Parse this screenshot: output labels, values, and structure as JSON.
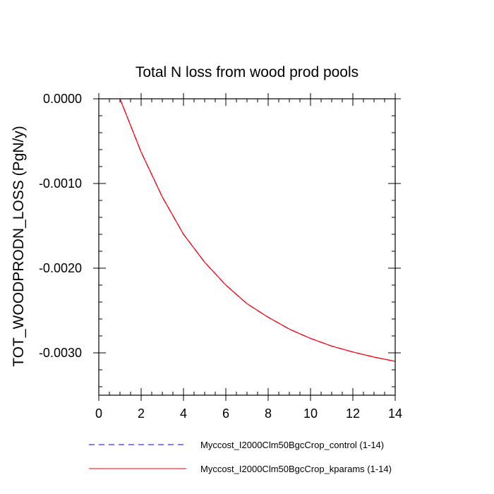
{
  "chart_data": {
    "type": "line",
    "title": "Total N loss from wood prod pools",
    "xlabel": "",
    "ylabel": "TOT_WOODPRODN_LOSS  (PgN/y)",
    "xlim": [
      0,
      14
    ],
    "ylim": [
      -0.0035,
      0.0
    ],
    "x_ticks": [
      0,
      2,
      4,
      6,
      8,
      10,
      12,
      14
    ],
    "x_tick_labels": [
      "0",
      "2",
      "4",
      "6",
      "8",
      "10",
      "12",
      "14"
    ],
    "y_ticks": [
      0.0,
      -0.001,
      -0.002,
      -0.003
    ],
    "y_tick_labels": [
      "0.0000",
      "-0.0010",
      "-0.0020",
      "-0.0030"
    ],
    "grid": false,
    "legend_position": "bottom",
    "x": [
      1,
      2,
      3,
      4,
      5,
      6,
      7,
      8,
      9,
      10,
      11,
      12,
      13,
      14
    ],
    "series": [
      {
        "name": "Myccost_I2000Clm50BgcCrop_control (1-14)",
        "color": "#0000ff",
        "dash": "dashed",
        "values": [
          0.0,
          -0.00063,
          -0.00116,
          -0.0016,
          -0.00193,
          -0.0022,
          -0.00242,
          -0.00258,
          -0.00272,
          -0.00283,
          -0.00292,
          -0.00299,
          -0.00305,
          -0.0031
        ]
      },
      {
        "name": "Myccost_I2000Clm50BgcCrop_kparams (1-14)",
        "color": "#ff0000",
        "dash": "solid",
        "values": [
          0.0,
          -0.00063,
          -0.00116,
          -0.0016,
          -0.00193,
          -0.0022,
          -0.00242,
          -0.00258,
          -0.00272,
          -0.00283,
          -0.00292,
          -0.00299,
          -0.00305,
          -0.0031
        ]
      }
    ]
  }
}
